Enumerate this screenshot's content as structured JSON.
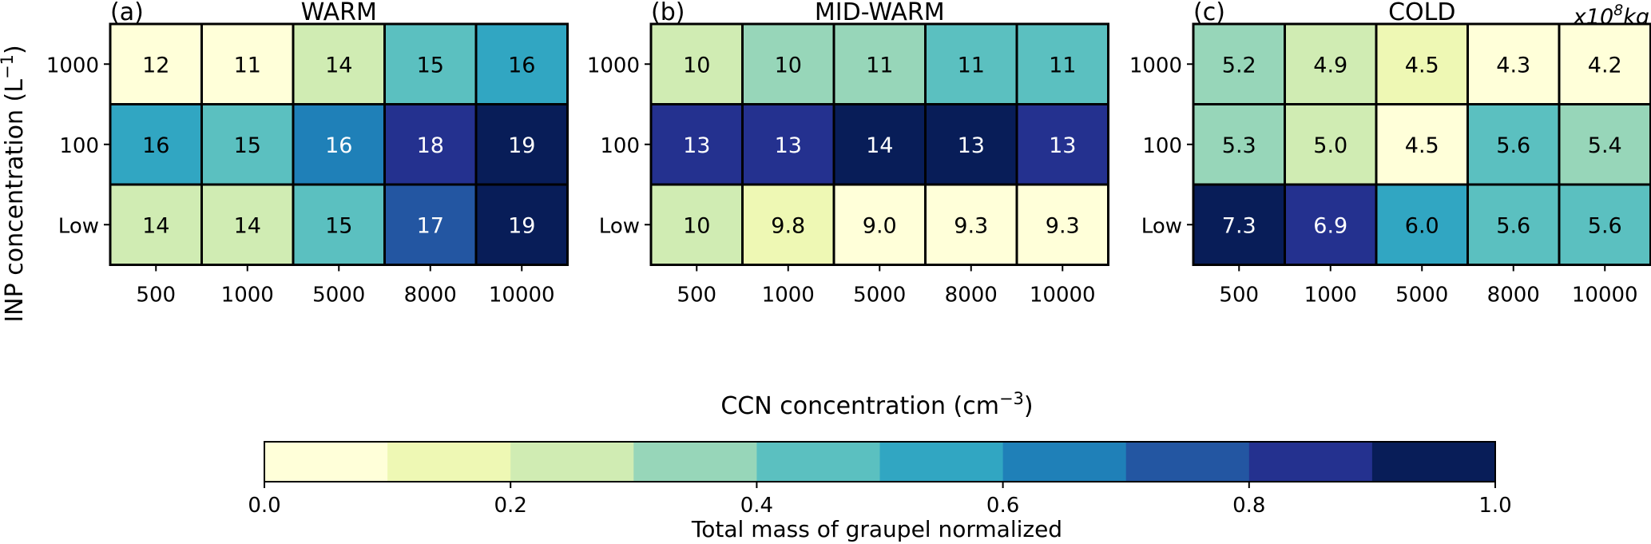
{
  "shared": {
    "xlabel": "CCN concentration (cm",
    "xlabel_exponent": "−3",
    "xlabel_close": ")",
    "ylabel": "INP concentration (L",
    "ylabel_exponent": "−1",
    "ylabel_close": ")",
    "unit_note_prefix": "x10",
    "unit_note_exponent": "8",
    "unit_note_suffix": "kg",
    "colorbar": {
      "label": "Total mass of graupel normalized",
      "ticks": [
        "0.0",
        "0.2",
        "0.4",
        "0.6",
        "0.8",
        "1.0"
      ],
      "tick_values": [
        0.0,
        0.2,
        0.4,
        0.6,
        0.8,
        1.0
      ],
      "range": [
        0,
        1
      ],
      "bins": 10,
      "colormap": "YlGnBu",
      "colors": [
        "#ffffd9",
        "#edf8b1",
        "#c7e9b4",
        "#7fcdbb",
        "#41b6c4",
        "#1d91c0",
        "#225ea8",
        "#253494",
        "#081d58"
      ],
      "bin_colors": [
        "#ffffd9",
        "#eef8b4",
        "#d0ecb3",
        "#97d6b9",
        "#5bc0c0",
        "#31a6c2",
        "#1f80b8",
        "#2356a2",
        "#24318f",
        "#081d58"
      ]
    }
  },
  "chart_data": [
    {
      "type": "heatmap",
      "panel_label": "(a)",
      "title": "WARM",
      "x_categories": [
        "500",
        "1000",
        "5000",
        "8000",
        "10000"
      ],
      "y_categories": [
        "1000",
        "100",
        "Low"
      ],
      "values": [
        [
          12,
          11,
          14,
          15,
          16
        ],
        [
          16,
          15,
          16,
          18,
          19
        ],
        [
          14,
          14,
          15,
          17,
          19
        ]
      ],
      "labels": [
        [
          "12",
          "11",
          "14",
          "15",
          "16"
        ],
        [
          "16",
          "15",
          "16",
          "18",
          "19"
        ],
        [
          "14",
          "14",
          "15",
          "17",
          "19"
        ]
      ],
      "normalized": [
        [
          0.05,
          0.02,
          0.25,
          0.45,
          0.55
        ],
        [
          0.55,
          0.45,
          0.65,
          0.85,
          0.95
        ],
        [
          0.25,
          0.25,
          0.45,
          0.75,
          0.95
        ]
      ]
    },
    {
      "type": "heatmap",
      "panel_label": "(b)",
      "title": "MID-WARM",
      "x_categories": [
        "500",
        "1000",
        "5000",
        "8000",
        "10000"
      ],
      "y_categories": [
        "1000",
        "100",
        "Low"
      ],
      "values": [
        [
          10,
          10,
          11,
          11,
          11
        ],
        [
          13,
          13,
          14,
          13,
          13
        ],
        [
          10,
          9.8,
          9.0,
          9.3,
          9.3
        ]
      ],
      "labels": [
        [
          "10",
          "10",
          "11",
          "11",
          "11"
        ],
        [
          "13",
          "13",
          "14",
          "13",
          "13"
        ],
        [
          "10",
          "9.8",
          "9.0",
          "9.3",
          "9.3"
        ]
      ],
      "normalized": [
        [
          0.25,
          0.35,
          0.35,
          0.45,
          0.45
        ],
        [
          0.85,
          0.85,
          0.95,
          0.95,
          0.85
        ],
        [
          0.25,
          0.15,
          0.05,
          0.05,
          0.05
        ]
      ]
    },
    {
      "type": "heatmap",
      "panel_label": "(c)",
      "title": "COLD",
      "x_categories": [
        "500",
        "1000",
        "5000",
        "8000",
        "10000"
      ],
      "y_categories": [
        "1000",
        "100",
        "Low"
      ],
      "values": [
        [
          5.2,
          4.9,
          4.5,
          4.3,
          4.2
        ],
        [
          5.3,
          5.0,
          4.5,
          5.6,
          5.4
        ],
        [
          7.3,
          6.9,
          6.0,
          5.6,
          5.6
        ]
      ],
      "labels": [
        [
          "5.2",
          "4.9",
          "4.5",
          "4.3",
          "4.2"
        ],
        [
          "5.3",
          "5.0",
          "4.5",
          "5.6",
          "5.4"
        ],
        [
          "7.3",
          "6.9",
          "6.0",
          "5.6",
          "5.6"
        ]
      ],
      "normalized": [
        [
          0.35,
          0.25,
          0.15,
          0.05,
          0.05
        ],
        [
          0.35,
          0.25,
          0.05,
          0.45,
          0.35
        ],
        [
          0.95,
          0.85,
          0.55,
          0.45,
          0.45
        ]
      ]
    }
  ]
}
